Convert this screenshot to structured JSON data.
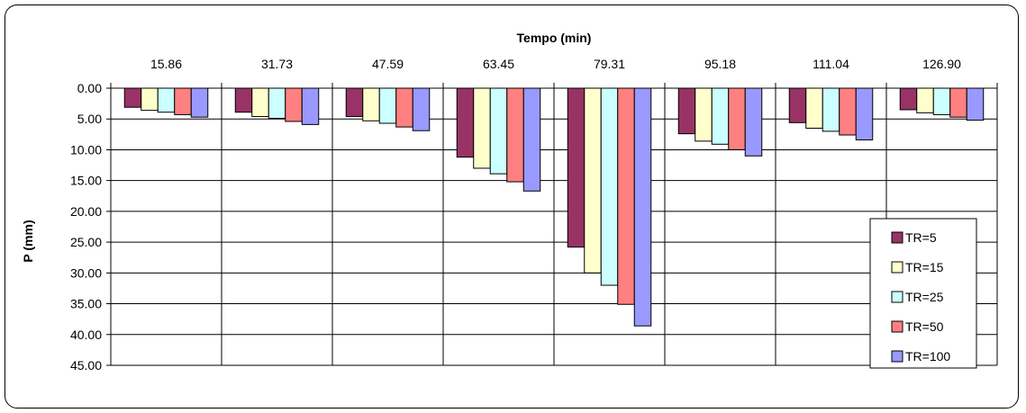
{
  "chart_data": {
    "type": "bar",
    "orientation": "vertical-inverted",
    "title": "",
    "xlabel": "Tempo (min)",
    "ylabel": "P (mm)",
    "x_axis_position": "top",
    "y_inverted": true,
    "ylim": [
      0,
      45
    ],
    "ytick_step": 5,
    "grid": "horizontal",
    "legend_position": "bottom-right",
    "categories": [
      "15.86",
      "31.73",
      "47.59",
      "63.45",
      "79.31",
      "95.18",
      "111.04",
      "126.90"
    ],
    "yticks": [
      "0.00",
      "5.00",
      "10.00",
      "15.00",
      "20.00",
      "25.00",
      "30.00",
      "35.00",
      "40.00",
      "45.00"
    ],
    "series": [
      {
        "name": "TR=5",
        "color": "#993366",
        "values": [
          3.1,
          3.9,
          4.6,
          11.2,
          25.8,
          7.4,
          5.6,
          3.5
        ]
      },
      {
        "name": "TR=15",
        "color": "#FFFFCC",
        "values": [
          3.6,
          4.6,
          5.3,
          13.0,
          30.0,
          8.6,
          6.5,
          4.0
        ]
      },
      {
        "name": "TR=25",
        "color": "#CCFFFF",
        "values": [
          3.9,
          4.9,
          5.7,
          13.9,
          32.0,
          9.1,
          7.0,
          4.3
        ]
      },
      {
        "name": "TR=50",
        "color": "#FF8080",
        "values": [
          4.3,
          5.4,
          6.3,
          15.2,
          35.1,
          10.0,
          7.6,
          4.7
        ]
      },
      {
        "name": "TR=100",
        "color": "#9999FF",
        "values": [
          4.7,
          5.9,
          6.9,
          16.7,
          38.6,
          11.0,
          8.4,
          5.2
        ]
      }
    ]
  }
}
